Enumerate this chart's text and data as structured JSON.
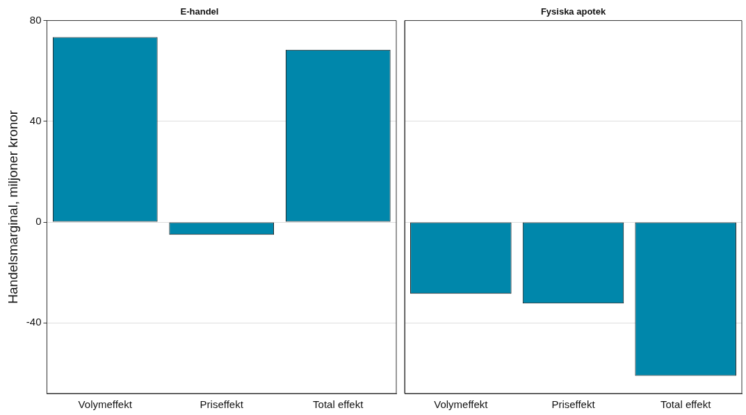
{
  "chart_data": [
    {
      "type": "bar",
      "title": "E-handel",
      "ylabel": "Handelsmarginal, miljoner kronor",
      "categories": [
        "Volymeffekt",
        "Priseffekt",
        "Total effekt"
      ],
      "values": [
        73.4,
        -5,
        68.4
      ],
      "color": "#0087ab",
      "ylim": [
        -68,
        80
      ],
      "yticks": [
        -40,
        0,
        40,
        80
      ],
      "grid": "y",
      "legend": false
    },
    {
      "type": "bar",
      "title": "Fysiska apotek",
      "categories": [
        "Volymeffekt",
        "Priseffekt",
        "Total effekt"
      ],
      "values": [
        -28.4,
        -32.3,
        -61
      ],
      "color": "#0087ab",
      "ylim": [
        -68,
        80
      ],
      "yticks": [
        -40,
        0,
        40,
        80
      ],
      "grid": "y",
      "legend": false,
      "tick_labels": "x"
    }
  ]
}
